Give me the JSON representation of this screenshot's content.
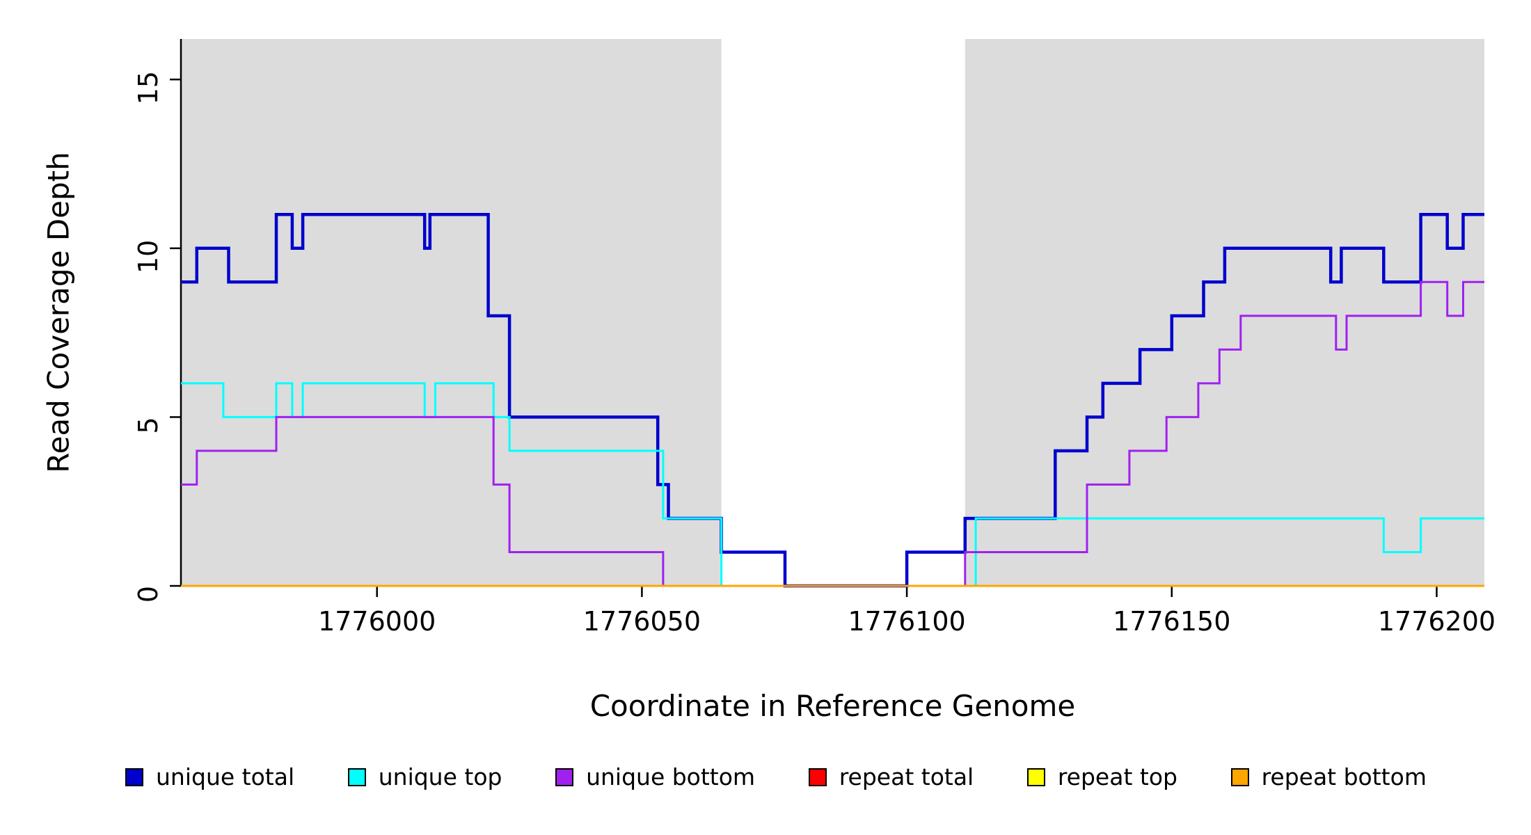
{
  "chart_data": {
    "type": "line",
    "subtype": "step-coverage",
    "title": "",
    "xlabel": "Coordinate in Reference Genome",
    "ylabel": "Read Coverage Depth",
    "x_domain": [
      1775963,
      1776209
    ],
    "y_domain": [
      0,
      16.2
    ],
    "x_ticks": [
      1776000,
      1776050,
      1776100,
      1776150,
      1776200
    ],
    "y_ticks": [
      0,
      5,
      10,
      15
    ],
    "grid": false,
    "legend_position": "bottom",
    "background_color": "#FFFFFF",
    "shaded_region_color": "#DCDCDC",
    "shaded_regions": [
      {
        "x0": 1775963,
        "x1": 1776065
      },
      {
        "x0": 1776111,
        "x1": 1776209
      }
    ],
    "series": [
      {
        "name": "unique total",
        "color": "#0000CD",
        "width": 4.5,
        "points": [
          [
            1775963,
            9
          ],
          [
            1775966,
            10
          ],
          [
            1775972,
            9
          ],
          [
            1775981,
            11
          ],
          [
            1775984,
            10
          ],
          [
            1775986,
            11
          ],
          [
            1776009,
            10
          ],
          [
            1776010,
            11
          ],
          [
            1776021,
            8
          ],
          [
            1776025,
            5
          ],
          [
            1776053,
            3
          ],
          [
            1776055,
            2
          ],
          [
            1776065,
            1
          ],
          [
            1776077,
            0
          ],
          [
            1776100,
            1
          ],
          [
            1776111,
            2
          ],
          [
            1776128,
            4
          ],
          [
            1776134,
            5
          ],
          [
            1776137,
            6
          ],
          [
            1776144,
            7
          ],
          [
            1776150,
            8
          ],
          [
            1776156,
            9
          ],
          [
            1776160,
            10
          ],
          [
            1776180,
            9
          ],
          [
            1776182,
            10
          ],
          [
            1776190,
            9
          ],
          [
            1776197,
            11
          ],
          [
            1776202,
            10
          ],
          [
            1776205,
            11
          ]
        ]
      },
      {
        "name": "unique top",
        "color": "#00FFFF",
        "width": 3,
        "points": [
          [
            1775963,
            6
          ],
          [
            1775971,
            5
          ],
          [
            1775981,
            6
          ],
          [
            1775984,
            5
          ],
          [
            1775986,
            6
          ],
          [
            1776009,
            5
          ],
          [
            1776011,
            6
          ],
          [
            1776022,
            5
          ],
          [
            1776025,
            4
          ],
          [
            1776054,
            2
          ],
          [
            1776065,
            0
          ],
          [
            1776113,
            2
          ],
          [
            1776190,
            1
          ],
          [
            1776197,
            2
          ]
        ]
      },
      {
        "name": "unique bottom",
        "color": "#A020F0",
        "width": 3,
        "points": [
          [
            1775963,
            3
          ],
          [
            1775966,
            4
          ],
          [
            1775981,
            5
          ],
          [
            1776022,
            3
          ],
          [
            1776025,
            1
          ],
          [
            1776054,
            0
          ],
          [
            1776111,
            1
          ],
          [
            1776134,
            3
          ],
          [
            1776142,
            4
          ],
          [
            1776149,
            5
          ],
          [
            1776155,
            6
          ],
          [
            1776159,
            7
          ],
          [
            1776163,
            8
          ],
          [
            1776181,
            7
          ],
          [
            1776183,
            8
          ],
          [
            1776197,
            9
          ],
          [
            1776202,
            8
          ],
          [
            1776205,
            9
          ]
        ]
      },
      {
        "name": "repeat total",
        "color": "#FF0000",
        "width": 3,
        "points": [
          [
            1775963,
            0
          ]
        ]
      },
      {
        "name": "repeat top",
        "color": "#FFFF00",
        "width": 3,
        "points": [
          [
            1775963,
            0
          ]
        ]
      },
      {
        "name": "repeat bottom",
        "color": "#FFA500",
        "width": 3,
        "points": [
          [
            1775963,
            0
          ]
        ]
      }
    ]
  }
}
